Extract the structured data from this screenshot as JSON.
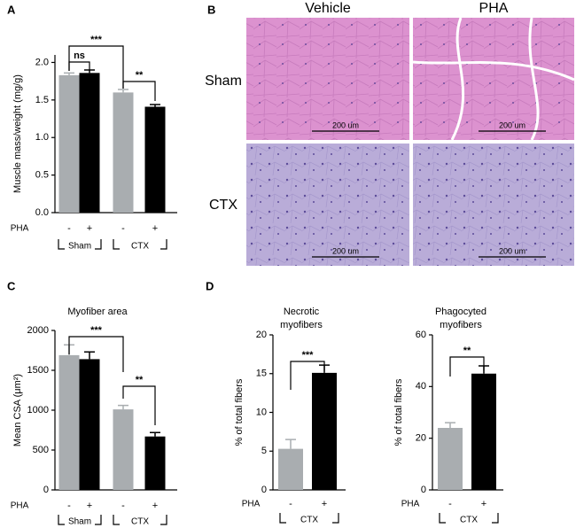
{
  "panels": [
    "A",
    "B",
    "C",
    "D"
  ],
  "histology": {
    "columns": [
      "Vehicle",
      "PHA"
    ],
    "rows": [
      "Sham",
      "CTX"
    ],
    "scale_bar": "200 um"
  },
  "chart_data": [
    {
      "type": "bar",
      "ylabel": "Muscle mass/weight (mg/g)",
      "categories": [
        "-",
        "+",
        "-",
        "+"
      ],
      "row_label": "PHA",
      "groups": [
        "Sham",
        "CTX"
      ],
      "values": [
        1.83,
        1.86,
        1.6,
        1.41
      ],
      "errors": [
        0.03,
        0.04,
        0.04,
        0.03
      ],
      "colors": [
        "#a9adb0",
        "#000000",
        "#a9adb0",
        "#000000"
      ],
      "ylim": [
        0,
        2.1
      ],
      "yticks": [
        {
          "value": 0,
          "label": "0.0"
        },
        0.5,
        {
          "value": 1,
          "label": "1.0"
        },
        1.5,
        {
          "value": 2,
          "label": "2.0"
        }
      ],
      "annotations": [
        "ns",
        "***",
        "**"
      ]
    },
    {
      "type": "bar",
      "title": [
        "Myofiber area"
      ],
      "ylabel": "Mean CSA (μm²)",
      "categories": [
        "-",
        "+",
        "-",
        "+"
      ],
      "row_label": "PHA",
      "groups": [
        "Sham",
        "CTX"
      ],
      "values": [
        1690,
        1640,
        1010,
        670
      ],
      "errors": [
        130,
        90,
        50,
        50
      ],
      "colors": [
        "#a9adb0",
        "#000000",
        "#a9adb0",
        "#000000"
      ],
      "ylim": [
        0,
        2000
      ],
      "yticks": [
        0,
        500,
        1000,
        1500,
        2000
      ],
      "annotations": [
        "***",
        "**"
      ]
    },
    {
      "type": "bar",
      "title": [
        "Necrotic",
        "myofibers"
      ],
      "ylabel": "% of total fibers",
      "categories": [
        "-",
        "+"
      ],
      "row_label": "PHA",
      "groups": [
        "CTX"
      ],
      "values": [
        5.3,
        15.1
      ],
      "errors": [
        1.2,
        1.0
      ],
      "colors": [
        "#a9adb0",
        "#000000"
      ],
      "ylim": [
        0,
        20
      ],
      "yticks": [
        0,
        5,
        10,
        15,
        20
      ],
      "annotations": [
        "***"
      ]
    },
    {
      "type": "bar",
      "title": [
        "Phagocyted",
        "myofibers"
      ],
      "ylabel": "% of total fibers",
      "categories": [
        "-",
        "+"
      ],
      "row_label": "PHA",
      "groups": [
        "CTX"
      ],
      "values": [
        24,
        45
      ],
      "errors": [
        2,
        3
      ],
      "colors": [
        "#a9adb0",
        "#000000"
      ],
      "ylim": [
        0,
        60
      ],
      "yticks": [
        0,
        20,
        40,
        60
      ],
      "annotations": [
        "**"
      ]
    }
  ]
}
